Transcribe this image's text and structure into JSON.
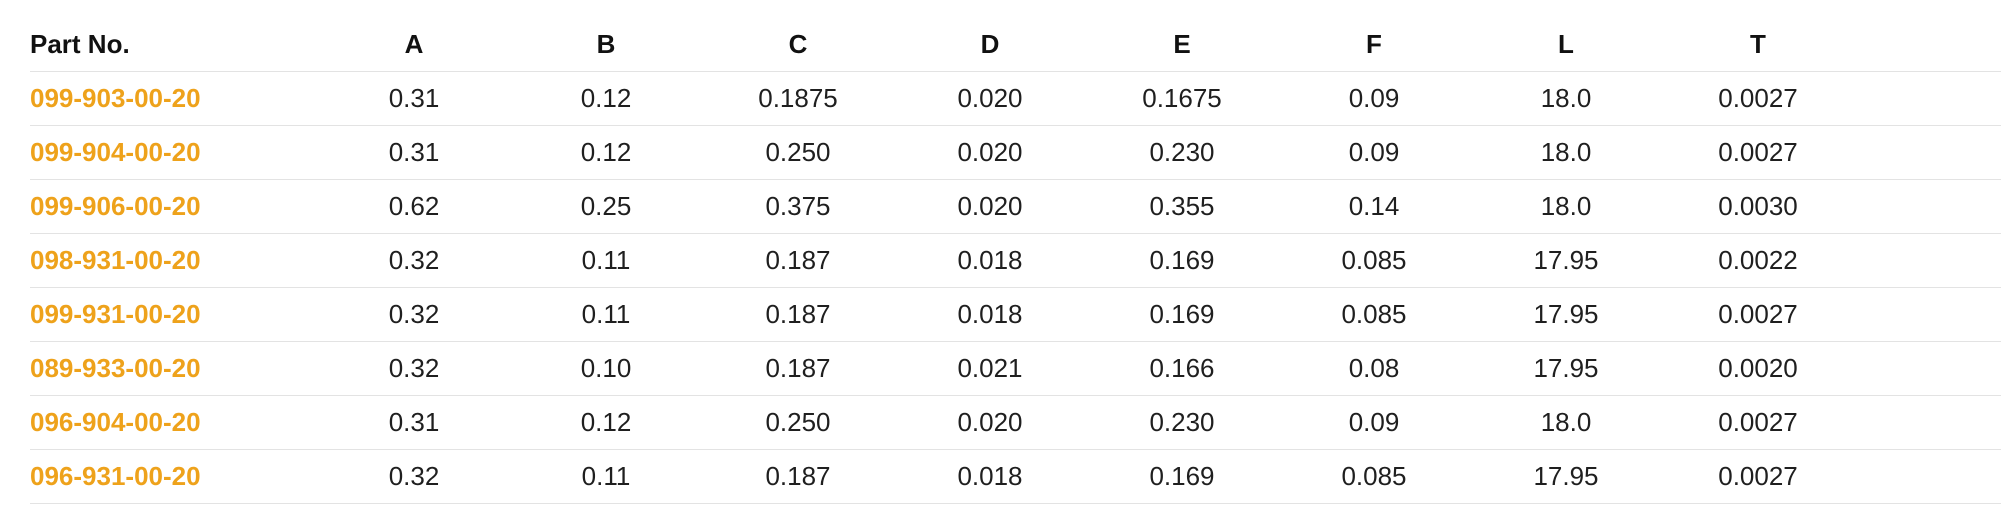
{
  "table": {
    "headers": [
      "Part No.",
      "A",
      "B",
      "C",
      "D",
      "E",
      "F",
      "L",
      "T"
    ],
    "rows": [
      {
        "part_no": "099-903-00-20",
        "values": [
          "0.31",
          "0.12",
          "0.1875",
          "0.020",
          "0.1675",
          "0.09",
          "18.0",
          "0.0027"
        ]
      },
      {
        "part_no": "099-904-00-20",
        "values": [
          "0.31",
          "0.12",
          "0.250",
          "0.020",
          "0.230",
          "0.09",
          "18.0",
          "0.0027"
        ]
      },
      {
        "part_no": "099-906-00-20",
        "values": [
          "0.62",
          "0.25",
          "0.375",
          "0.020",
          "0.355",
          "0.14",
          "18.0",
          "0.0030"
        ]
      },
      {
        "part_no": "098-931-00-20",
        "values": [
          "0.32",
          "0.11",
          "0.187",
          "0.018",
          "0.169",
          "0.085",
          "17.95",
          "0.0022"
        ]
      },
      {
        "part_no": "099-931-00-20",
        "values": [
          "0.32",
          "0.11",
          "0.187",
          "0.018",
          "0.169",
          "0.085",
          "17.95",
          "0.0027"
        ]
      },
      {
        "part_no": "089-933-00-20",
        "values": [
          "0.32",
          "0.10",
          "0.187",
          "0.021",
          "0.166",
          "0.08",
          "17.95",
          "0.0020"
        ]
      },
      {
        "part_no": "096-904-00-20",
        "values": [
          "0.31",
          "0.12",
          "0.250",
          "0.020",
          "0.230",
          "0.09",
          "18.0",
          "0.0027"
        ]
      },
      {
        "part_no": "096-931-00-20",
        "values": [
          "0.32",
          "0.11",
          "0.187",
          "0.018",
          "0.169",
          "0.085",
          "17.95",
          "0.0027"
        ]
      }
    ]
  },
  "colors": {
    "part_link": "#eea21b",
    "row_divider": "#e3e3e3",
    "text": "#1f1f1f"
  }
}
